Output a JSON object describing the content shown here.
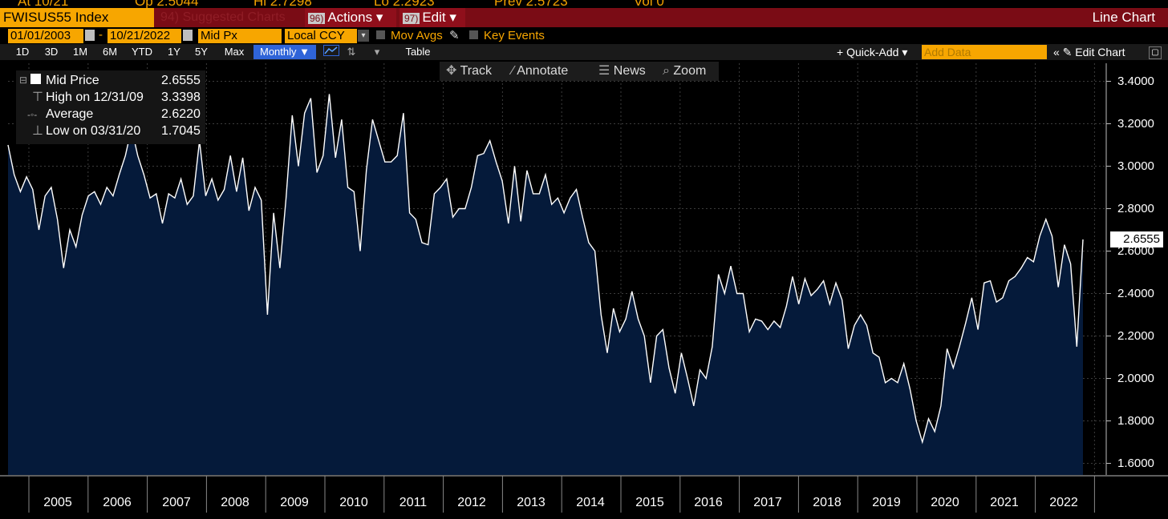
{
  "top_strip": {
    "at": "At 10/21",
    "op": "Op 2.5044",
    "hi": "Hi 2.7298",
    "lo": "Lo 2.2923",
    "prev": "Prev 2.5723",
    "vol": "Vol 0"
  },
  "header": {
    "ticker": "FWISUS55 Index",
    "suggested": "94) Suggested Charts",
    "actions_num": "96)",
    "actions": "Actions ▾",
    "edit_num": "97)",
    "edit": "Edit ▾",
    "chart_type": "Line Chart"
  },
  "settings": {
    "start_date": "01/01/2003",
    "end_date": "10/21/2022",
    "dash": "-",
    "field": "Mid Px",
    "currency": "Local CCY",
    "mov_avgs": "Mov Avgs",
    "key_events": "Key Events"
  },
  "ranges": [
    "1D",
    "3D",
    "1M",
    "6M",
    "YTD",
    "1Y",
    "5Y",
    "Max"
  ],
  "frequency": "Monthly ▼",
  "table_label": "Table",
  "quick_add": "+ Quick-Add ▾",
  "add_data_placeholder": "Add Data",
  "edit_chart": "« ✎ Edit Chart",
  "tools": {
    "track": "Track",
    "annotate": "Annotate",
    "news": "News",
    "zoom": "Zoom"
  },
  "legend": {
    "mid_label": "Mid Price",
    "mid_value": "2.6555",
    "high_label": "High on 12/31/09",
    "high_value": "3.3398",
    "avg_label": "Average",
    "avg_value": "2.6220",
    "low_label": "Low on 03/31/20",
    "low_value": "1.7045"
  },
  "last_value_label": "2.6555",
  "colors": {
    "background": "#000000",
    "fill": "#051a3a",
    "line": "#ffffff",
    "accent": "#f7a600",
    "banner": "#7a0c15"
  },
  "chart_data": {
    "type": "area",
    "x_start": "2004-01",
    "x_end": "2022-10",
    "interval": "monthly",
    "x_tick_labels": [
      "2005",
      "2006",
      "2007",
      "2008",
      "2009",
      "2010",
      "2011",
      "2012",
      "2013",
      "2014",
      "2015",
      "2016",
      "2017",
      "2018",
      "2019",
      "2020",
      "2021",
      "2022"
    ],
    "y_tick_labels": [
      "1.6000",
      "1.8000",
      "2.0000",
      "2.2000",
      "2.4000",
      "2.6000",
      "2.8000",
      "3.0000",
      "3.2000",
      "3.4000"
    ],
    "ylim": [
      1.54,
      3.48
    ],
    "grid": true,
    "series": [
      {
        "name": "Mid Price",
        "values": [
          3.1,
          2.96,
          2.88,
          2.95,
          2.89,
          2.7,
          2.86,
          2.9,
          2.75,
          2.52,
          2.7,
          2.62,
          2.77,
          2.86,
          2.88,
          2.82,
          2.9,
          2.86,
          2.96,
          3.05,
          3.18,
          3.05,
          2.96,
          2.85,
          2.87,
          2.73,
          2.87,
          2.85,
          2.94,
          2.82,
          2.86,
          3.12,
          2.86,
          2.94,
          2.84,
          2.89,
          3.05,
          2.88,
          3.04,
          2.79,
          2.9,
          2.84,
          2.3,
          2.78,
          2.52,
          2.85,
          3.24,
          3.0,
          3.25,
          3.32,
          2.97,
          3.05,
          3.34,
          3.04,
          3.22,
          2.9,
          2.88,
          2.6,
          2.98,
          3.22,
          3.12,
          3.02,
          3.02,
          3.05,
          3.25,
          2.78,
          2.75,
          2.64,
          2.63,
          2.87,
          2.9,
          2.94,
          2.76,
          2.8,
          2.8,
          2.9,
          3.05,
          3.06,
          3.12,
          3.02,
          2.93,
          2.73,
          3.0,
          2.74,
          2.98,
          2.87,
          2.87,
          2.96,
          2.82,
          2.85,
          2.78,
          2.85,
          2.89,
          2.76,
          2.64,
          2.6,
          2.3,
          2.12,
          2.33,
          2.22,
          2.28,
          2.41,
          2.28,
          2.2,
          1.98,
          2.2,
          2.23,
          2.05,
          1.93,
          2.12,
          2.0,
          1.87,
          2.04,
          2.0,
          2.15,
          2.49,
          2.4,
          2.53,
          2.4,
          2.4,
          2.22,
          2.28,
          2.27,
          2.23,
          2.27,
          2.24,
          2.34,
          2.48,
          2.35,
          2.47,
          2.39,
          2.42,
          2.46,
          2.35,
          2.45,
          2.37,
          2.14,
          2.25,
          2.3,
          2.25,
          2.12,
          2.1,
          1.98,
          2.0,
          1.98,
          2.07,
          1.95,
          1.8,
          1.7,
          1.81,
          1.75,
          1.87,
          2.14,
          2.05,
          2.15,
          2.26,
          2.38,
          2.23,
          2.45,
          2.46,
          2.36,
          2.38,
          2.46,
          2.48,
          2.52,
          2.57,
          2.55,
          2.67,
          2.75,
          2.67,
          2.43,
          2.63,
          2.54,
          2.15,
          2.655
        ]
      }
    ]
  }
}
